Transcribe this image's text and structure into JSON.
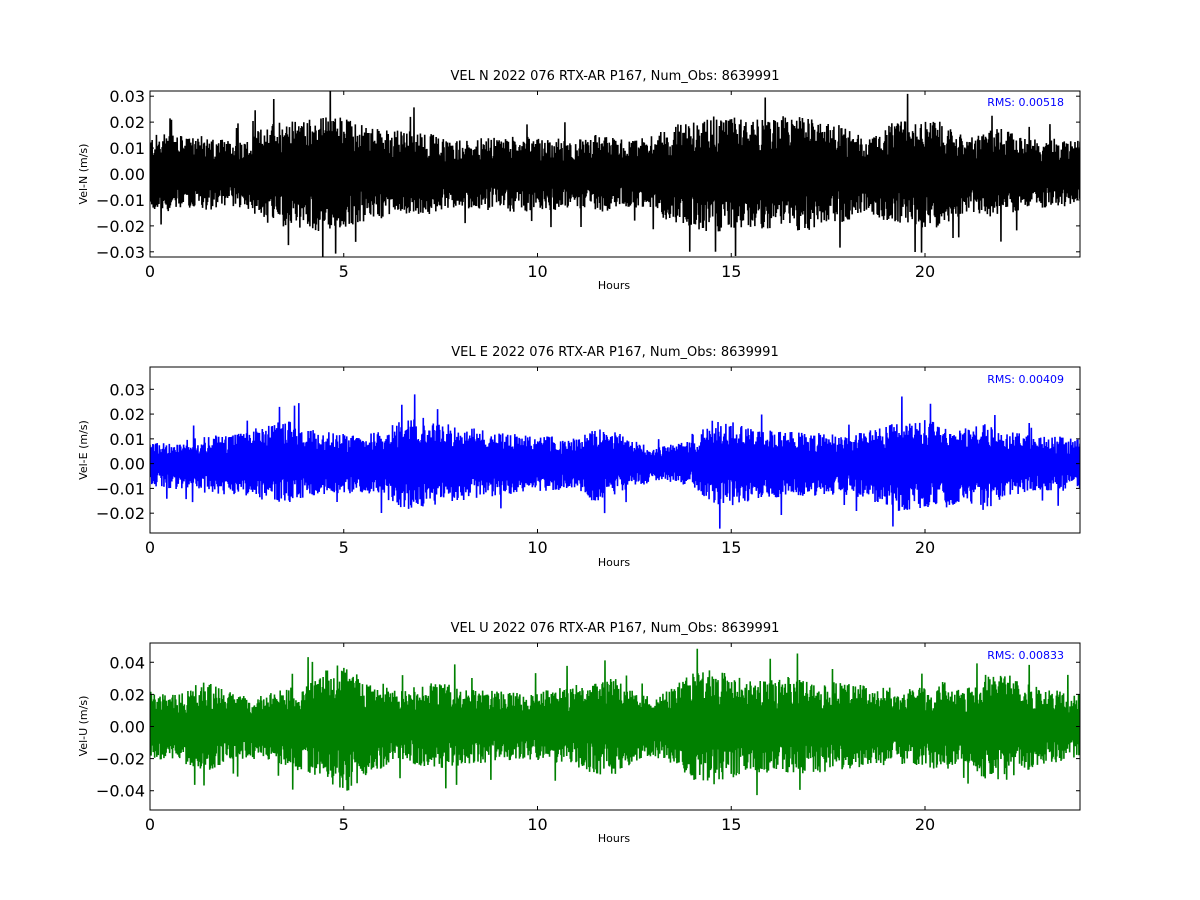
{
  "chart_data": [
    {
      "type": "line",
      "title": "VEL N 2022 076 RTX-AR  P167, Num_Obs: 8639991",
      "xlabel": "Hours",
      "ylabel": "Vel-N (m/s)",
      "xlim": [
        0,
        24
      ],
      "ylim": [
        -0.032,
        0.032
      ],
      "xticks": [
        "0",
        "5",
        "10",
        "15",
        "20"
      ],
      "yticks": [
        "0.03",
        "0.02",
        "0.01",
        "0.00",
        "−0.01",
        "−0.02",
        "−0.03"
      ],
      "color": "#000000",
      "rms_label": "RMS:  0.00518",
      "rms_color": "#0000ff",
      "series": [
        {
          "x": [
            0,
            0.5,
            1,
            1.5,
            2,
            2.5,
            3,
            3.5,
            4,
            4.5,
            5,
            5.5,
            6,
            6.5,
            7,
            7.5,
            8,
            8.5,
            9,
            9.5,
            10,
            10.5,
            11,
            11.5,
            12,
            12.5,
            13,
            13.5,
            14,
            14.5,
            15,
            15.5,
            16,
            16.5,
            17,
            17.5,
            18,
            18.5,
            19,
            19.5,
            20,
            20.5,
            21,
            21.5,
            22,
            22.5,
            23,
            23.5,
            24
          ],
          "upper": [
            0.015,
            0.016,
            0.014,
            0.015,
            0.013,
            0.013,
            0.02,
            0.022,
            0.021,
            0.023,
            0.022,
            0.019,
            0.017,
            0.018,
            0.017,
            0.014,
            0.013,
            0.014,
            0.014,
            0.015,
            0.014,
            0.014,
            0.013,
            0.016,
            0.014,
            0.013,
            0.015,
            0.019,
            0.021,
            0.023,
            0.022,
            0.021,
            0.021,
            0.023,
            0.022,
            0.02,
            0.018,
            0.014,
            0.019,
            0.021,
            0.022,
            0.02,
            0.015,
            0.016,
            0.018,
            0.014,
            0.013,
            0.014,
            0.013
          ],
          "lower": [
            -0.014,
            -0.015,
            -0.013,
            -0.014,
            -0.013,
            -0.013,
            -0.019,
            -0.022,
            -0.021,
            -0.023,
            -0.021,
            -0.019,
            -0.017,
            -0.016,
            -0.017,
            -0.014,
            -0.013,
            -0.014,
            -0.014,
            -0.015,
            -0.014,
            -0.014,
            -0.013,
            -0.015,
            -0.014,
            -0.013,
            -0.015,
            -0.019,
            -0.021,
            -0.023,
            -0.022,
            -0.021,
            -0.021,
            -0.022,
            -0.022,
            -0.02,
            -0.018,
            -0.014,
            -0.019,
            -0.021,
            -0.022,
            -0.02,
            -0.015,
            -0.016,
            -0.017,
            -0.014,
            -0.013,
            -0.013,
            -0.013
          ]
        }
      ]
    },
    {
      "type": "line",
      "title": "VEL E 2022 076 RTX-AR  P167, Num_Obs: 8639991",
      "xlabel": "Hours",
      "ylabel": "Vel-E (m/s)",
      "xlim": [
        0,
        24
      ],
      "ylim": [
        -0.028,
        0.039
      ],
      "xticks": [
        "0",
        "5",
        "10",
        "15",
        "20"
      ],
      "yticks": [
        "0.03",
        "0.02",
        "0.01",
        "0.00",
        "−0.01",
        "−0.02"
      ],
      "color": "#0000ff",
      "rms_label": "RMS:  0.00409",
      "rms_color": "#0000ff",
      "series": [
        {
          "x": [
            0,
            0.5,
            1,
            1.5,
            2,
            2.5,
            3,
            3.5,
            4,
            4.5,
            5,
            5.5,
            6,
            6.5,
            7,
            7.5,
            8,
            8.5,
            9,
            9.5,
            10,
            10.5,
            11,
            11.5,
            12,
            12.5,
            13,
            13.5,
            14,
            14.5,
            15,
            15.5,
            16,
            16.5,
            17,
            17.5,
            18,
            18.5,
            19,
            19.5,
            20,
            20.5,
            21,
            21.5,
            22,
            22.5,
            23,
            23.5,
            24
          ],
          "upper": [
            0.009,
            0.008,
            0.01,
            0.011,
            0.012,
            0.013,
            0.016,
            0.018,
            0.015,
            0.013,
            0.012,
            0.011,
            0.014,
            0.018,
            0.019,
            0.017,
            0.015,
            0.014,
            0.013,
            0.012,
            0.011,
            0.011,
            0.01,
            0.014,
            0.013,
            0.01,
            0.006,
            0.008,
            0.009,
            0.018,
            0.017,
            0.014,
            0.014,
            0.013,
            0.013,
            0.012,
            0.012,
            0.013,
            0.016,
            0.018,
            0.018,
            0.017,
            0.014,
            0.017,
            0.014,
            0.012,
            0.011,
            0.011,
            0.01
          ],
          "lower": [
            -0.009,
            -0.01,
            -0.011,
            -0.012,
            -0.013,
            -0.013,
            -0.015,
            -0.016,
            -0.014,
            -0.013,
            -0.012,
            -0.013,
            -0.014,
            -0.019,
            -0.018,
            -0.016,
            -0.015,
            -0.014,
            -0.013,
            -0.012,
            -0.011,
            -0.011,
            -0.011,
            -0.016,
            -0.013,
            -0.01,
            -0.007,
            -0.008,
            -0.009,
            -0.017,
            -0.017,
            -0.015,
            -0.014,
            -0.013,
            -0.013,
            -0.013,
            -0.013,
            -0.014,
            -0.018,
            -0.02,
            -0.019,
            -0.018,
            -0.015,
            -0.019,
            -0.015,
            -0.012,
            -0.011,
            -0.011,
            -0.011
          ]
        }
      ]
    },
    {
      "type": "line",
      "title": "VEL U 2022 076 RTX-AR  P167, Num_Obs: 8639991",
      "xlabel": "Hours",
      "ylabel": "Vel-U (m/s)",
      "xlim": [
        0,
        24
      ],
      "ylim": [
        -0.052,
        0.052
      ],
      "xticks": [
        "0",
        "5",
        "10",
        "15",
        "20"
      ],
      "yticks": [
        "0.04",
        "0.02",
        "0.00",
        "−0.02",
        "−0.04"
      ],
      "color": "#008000",
      "rms_label": "RMS:  0.00833",
      "rms_color": "#0000ff",
      "series": [
        {
          "x": [
            0,
            0.5,
            1,
            1.5,
            2,
            2.5,
            3,
            3.5,
            4,
            4.5,
            5,
            5.5,
            6,
            6.5,
            7,
            7.5,
            8,
            8.5,
            9,
            9.5,
            10,
            10.5,
            11,
            11.5,
            12,
            12.5,
            13,
            13.5,
            14,
            14.5,
            15,
            15.5,
            16,
            16.5,
            17,
            17.5,
            18,
            18.5,
            19,
            19.5,
            20,
            20.5,
            21,
            21.5,
            22,
            22.5,
            23,
            23.5,
            24
          ],
          "upper": [
            0.022,
            0.02,
            0.025,
            0.028,
            0.022,
            0.02,
            0.021,
            0.024,
            0.027,
            0.035,
            0.04,
            0.032,
            0.027,
            0.022,
            0.026,
            0.028,
            0.024,
            0.023,
            0.022,
            0.021,
            0.022,
            0.024,
            0.026,
            0.028,
            0.03,
            0.022,
            0.018,
            0.025,
            0.033,
            0.036,
            0.032,
            0.028,
            0.029,
            0.031,
            0.03,
            0.028,
            0.027,
            0.026,
            0.025,
            0.024,
            0.025,
            0.028,
            0.022,
            0.032,
            0.034,
            0.028,
            0.024,
            0.022,
            0.02
          ],
          "lower": [
            -0.022,
            -0.02,
            -0.025,
            -0.028,
            -0.022,
            -0.02,
            -0.021,
            -0.026,
            -0.028,
            -0.036,
            -0.042,
            -0.033,
            -0.026,
            -0.022,
            -0.025,
            -0.028,
            -0.024,
            -0.023,
            -0.022,
            -0.021,
            -0.022,
            -0.024,
            -0.025,
            -0.03,
            -0.03,
            -0.022,
            -0.018,
            -0.026,
            -0.034,
            -0.037,
            -0.033,
            -0.029,
            -0.029,
            -0.031,
            -0.03,
            -0.028,
            -0.027,
            -0.026,
            -0.025,
            -0.024,
            -0.025,
            -0.028,
            -0.022,
            -0.033,
            -0.035,
            -0.029,
            -0.024,
            -0.022,
            -0.02
          ]
        }
      ]
    }
  ]
}
